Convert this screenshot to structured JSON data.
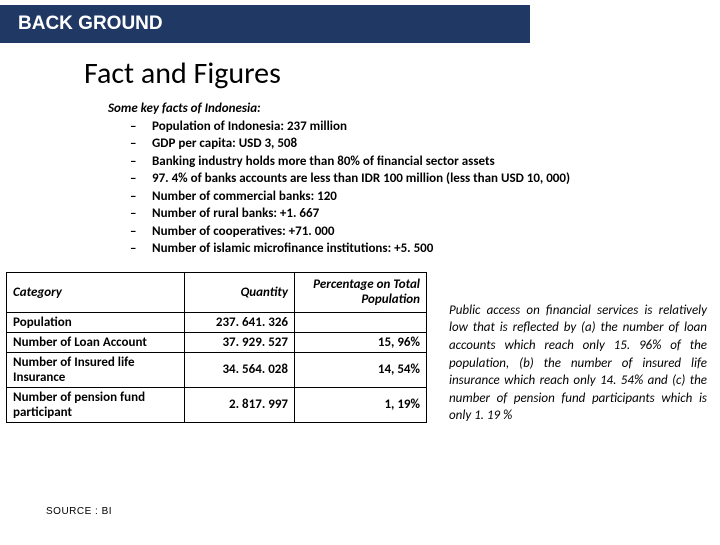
{
  "header": {
    "title": "BACK GROUND"
  },
  "title": "Fact and Figures",
  "facts": {
    "intro": "Some key facts of Indonesia:",
    "items": [
      "Population of Indonesia: 237 million",
      "GDP per capita: USD 3, 508",
      "Banking industry holds more than 80% of financial sector assets",
      "97. 4% of banks accounts are less than IDR 100 million (less than USD 10, 000)",
      "Number of commercial banks: 120",
      "Number of rural banks: +1. 667",
      "Number of cooperatives: +71. 000",
      "Number of islamic microfinance institutions: +5. 500"
    ]
  },
  "table": {
    "headers": {
      "cat": "Category",
      "qty": "Quantity",
      "pct": "Percentage on Total Population"
    },
    "rows": [
      {
        "cat": "Population",
        "qty": "237. 641. 326",
        "pct": ""
      },
      {
        "cat": "Number of Loan Account",
        "qty": "37. 929. 527",
        "pct": "15, 96%"
      },
      {
        "cat": "Number of Insured life Insurance",
        "qty": "34. 564. 028",
        "pct": "14, 54%"
      },
      {
        "cat": "Number of pension fund participant",
        "qty": "2. 817. 997",
        "pct": "1, 19%"
      }
    ]
  },
  "paragraph": "Public access on financial services is relatively low that is reflected by (a) the number of loan accounts which reach only 15. 96% of the population, (b) the number of insured life insurance which reach only 14. 54% and (c) the number of pension fund participants which is only 1. 19 %",
  "source": "SOURCE : BI",
  "colors": {
    "header_bg": "#1f3864",
    "header_text": "#ffffff",
    "body_text": "#000000",
    "border": "#000000",
    "bg": "#ffffff"
  }
}
